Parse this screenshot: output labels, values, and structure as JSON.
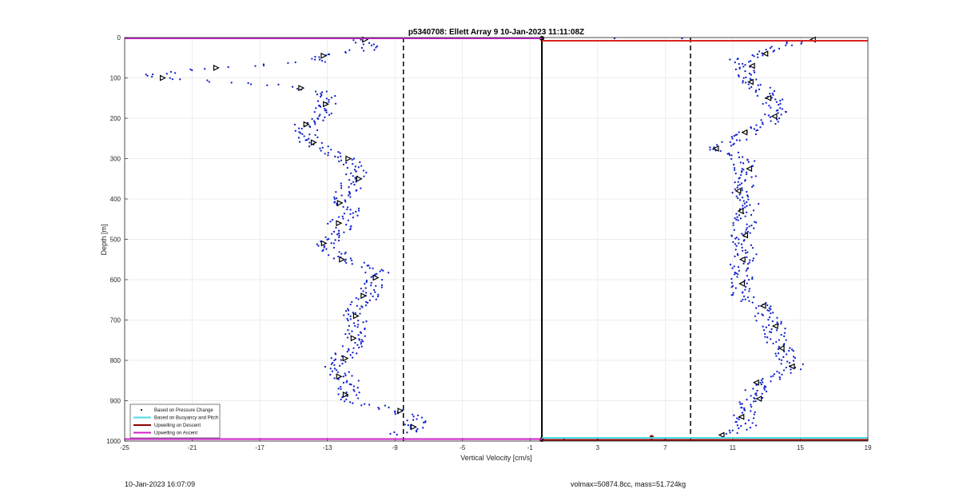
{
  "chart_data": {
    "type": "scatter",
    "title": "p5340708: Ellett Array 9 10-Jan-2023 11:11:08Z",
    "xlabel": "Vertical Velocity [cm/s]",
    "ylabel": "Depth [m]",
    "xlim": [
      -25,
      19
    ],
    "ylim": [
      0,
      1000
    ],
    "y_reversed": true,
    "grid": true,
    "xticks": [
      -25,
      -21,
      -17,
      -13,
      -9,
      -5,
      -1,
      3,
      7,
      11,
      15,
      19
    ],
    "yticks": [
      0,
      100,
      200,
      300,
      400,
      500,
      600,
      700,
      800,
      900,
      1000
    ],
    "reference_lines": {
      "solid_x": -0.3,
      "dashed_x": [
        -8.5,
        8.5
      ]
    },
    "legend": {
      "placement": "bottom-left",
      "entries": [
        {
          "label": "Based on Pressure Change",
          "color": "#111111",
          "style": "dot"
        },
        {
          "label": "Based on Buoyancy and Pitch",
          "color": "#4dd9e6",
          "style": "line"
        },
        {
          "label": "Upwelling on Descent",
          "color": "#8b0000",
          "style": "line"
        },
        {
          "label": "Upwelling on Ascent",
          "color": "#cc22cc",
          "style": "line"
        }
      ]
    },
    "colors": {
      "points": "#1122cc",
      "markers": "#000000",
      "descent_line": "#dd2222",
      "ascent_line": "#cc22cc",
      "buoyancy_line": "#4dd9e6"
    },
    "series": [
      {
        "name": "Based on Pressure Change",
        "role": "ascent",
        "profile": [
          {
            "depth": 5,
            "v": -11.0
          },
          {
            "depth": 25,
            "v": -10.2
          },
          {
            "depth": 45,
            "v": -13.2
          },
          {
            "depth": 60,
            "v": -13.5
          },
          {
            "depth": 75,
            "v": -19.5
          },
          {
            "depth": 92,
            "v": -24.0
          },
          {
            "depth": 100,
            "v": -22.5
          },
          {
            "depth": 115,
            "v": -17.0
          },
          {
            "depth": 125,
            "v": -14.5
          },
          {
            "depth": 140,
            "v": -13.0
          },
          {
            "depth": 165,
            "v": -12.8
          },
          {
            "depth": 195,
            "v": -13.5
          },
          {
            "depth": 215,
            "v": -14.3
          },
          {
            "depth": 240,
            "v": -14.2
          },
          {
            "depth": 260,
            "v": -14.0
          },
          {
            "depth": 280,
            "v": -13.0
          },
          {
            "depth": 300,
            "v": -12.0
          },
          {
            "depth": 325,
            "v": -11.2
          },
          {
            "depth": 350,
            "v": -11.3
          },
          {
            "depth": 380,
            "v": -11.8
          },
          {
            "depth": 410,
            "v": -12.0
          },
          {
            "depth": 435,
            "v": -11.4
          },
          {
            "depth": 460,
            "v": -12.3
          },
          {
            "depth": 485,
            "v": -12.1
          },
          {
            "depth": 510,
            "v": -13.0
          },
          {
            "depth": 530,
            "v": -12.6
          },
          {
            "depth": 550,
            "v": -12.2
          },
          {
            "depth": 575,
            "v": -10.2
          },
          {
            "depth": 595,
            "v": -9.9
          },
          {
            "depth": 615,
            "v": -10.3
          },
          {
            "depth": 640,
            "v": -10.6
          },
          {
            "depth": 665,
            "v": -11.2
          },
          {
            "depth": 690,
            "v": -11.5
          },
          {
            "depth": 720,
            "v": -11.2
          },
          {
            "depth": 745,
            "v": -11.3
          },
          {
            "depth": 770,
            "v": -11.6
          },
          {
            "depth": 795,
            "v": -12.2
          },
          {
            "depth": 820,
            "v": -12.5
          },
          {
            "depth": 840,
            "v": -12.1
          },
          {
            "depth": 860,
            "v": -11.6
          },
          {
            "depth": 885,
            "v": -11.8
          },
          {
            "depth": 905,
            "v": -11.6
          },
          {
            "depth": 925,
            "v": -8.5
          },
          {
            "depth": 945,
            "v": -8.0
          },
          {
            "depth": 965,
            "v": -7.6
          },
          {
            "depth": 985,
            "v": -9.0
          }
        ]
      },
      {
        "name": "Based on Pressure Change",
        "role": "descent",
        "profile": [
          {
            "depth": 5,
            "v": 15.5
          },
          {
            "depth": 20,
            "v": 13.8
          },
          {
            "depth": 40,
            "v": 12.8
          },
          {
            "depth": 55,
            "v": 11.5
          },
          {
            "depth": 70,
            "v": 12.0
          },
          {
            "depth": 90,
            "v": 11.6
          },
          {
            "depth": 110,
            "v": 12.2
          },
          {
            "depth": 130,
            "v": 12.8
          },
          {
            "depth": 150,
            "v": 13.3
          },
          {
            "depth": 175,
            "v": 13.6
          },
          {
            "depth": 195,
            "v": 13.4
          },
          {
            "depth": 215,
            "v": 13.0
          },
          {
            "depth": 235,
            "v": 12.0
          },
          {
            "depth": 255,
            "v": 11.0
          },
          {
            "depth": 275,
            "v": 10.2
          },
          {
            "depth": 300,
            "v": 11.6
          },
          {
            "depth": 325,
            "v": 11.8
          },
          {
            "depth": 350,
            "v": 11.8
          },
          {
            "depth": 380,
            "v": 11.3
          },
          {
            "depth": 405,
            "v": 12.0
          },
          {
            "depth": 430,
            "v": 11.7
          },
          {
            "depth": 460,
            "v": 11.7
          },
          {
            "depth": 490,
            "v": 11.6
          },
          {
            "depth": 520,
            "v": 11.8
          },
          {
            "depth": 550,
            "v": 11.7
          },
          {
            "depth": 580,
            "v": 11.4
          },
          {
            "depth": 610,
            "v": 11.6
          },
          {
            "depth": 640,
            "v": 11.6
          },
          {
            "depth": 665,
            "v": 12.6
          },
          {
            "depth": 690,
            "v": 12.9
          },
          {
            "depth": 715,
            "v": 13.4
          },
          {
            "depth": 745,
            "v": 13.5
          },
          {
            "depth": 770,
            "v": 13.9
          },
          {
            "depth": 795,
            "v": 14.4
          },
          {
            "depth": 815,
            "v": 14.5
          },
          {
            "depth": 835,
            "v": 14.1
          },
          {
            "depth": 855,
            "v": 12.6
          },
          {
            "depth": 875,
            "v": 12.4
          },
          {
            "depth": 895,
            "v": 12.4
          },
          {
            "depth": 915,
            "v": 11.8
          },
          {
            "depth": 940,
            "v": 11.7
          },
          {
            "depth": 965,
            "v": 12.0
          },
          {
            "depth": 985,
            "v": 10.6
          }
        ]
      },
      {
        "name": "Upwelling on Descent",
        "type": "line",
        "x": [
          -0.3,
          19
        ],
        "y": [
          8,
          8
        ]
      },
      {
        "name": "Upwelling on Ascent",
        "type": "line",
        "x": [
          -25,
          -0.3
        ],
        "y": [
          2,
          2
        ]
      },
      {
        "name": "Upwelling on Ascent",
        "type": "line",
        "x": [
          -25,
          -0.3
        ],
        "y": [
          995,
          995
        ]
      },
      {
        "name": "Based on Buoyancy and Pitch",
        "type": "line",
        "x": [
          -0.3,
          19
        ],
        "y": [
          992,
          992
        ]
      },
      {
        "name": "Upwelling on Descent",
        "type": "line",
        "x": [
          -0.3,
          19
        ],
        "y": [
          997,
          997
        ]
      }
    ]
  },
  "footer": {
    "left": "10-Jan-2023 16:07:09",
    "right": "volmax=50874.8cc, mass=51.724kg"
  }
}
